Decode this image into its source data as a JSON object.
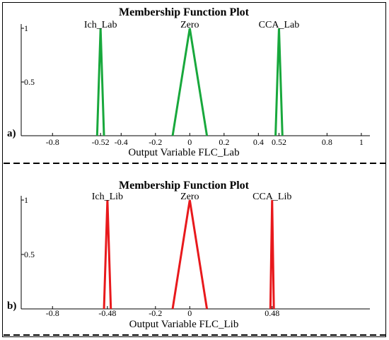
{
  "chart_data": [
    {
      "type": "line",
      "panel_label": "a)",
      "title": "Membership Function Plot",
      "xlabel": "Output Variable FLC_Lab",
      "xlim": [
        -0.9,
        1.05
      ],
      "ylim": [
        0,
        1
      ],
      "x_tick_labels": [
        "-0.8",
        "-0.52",
        "-0.4",
        "-0.2",
        "0",
        "0.2",
        "0.4",
        "0.52",
        "0.8",
        "1"
      ],
      "x_tick_values": [
        -0.8,
        -0.52,
        -0.4,
        -0.2,
        0,
        0.2,
        0.4,
        0.52,
        0.8,
        1
      ],
      "y_tick_labels": [
        "0.5",
        "1"
      ],
      "y_tick_values": [
        0.5,
        1
      ],
      "color": "#18a83c",
      "series": [
        {
          "name": "Ich_Lab",
          "x": [
            -0.54,
            -0.52,
            -0.5
          ],
          "y": [
            0,
            1,
            0
          ]
        },
        {
          "name": "Zero",
          "x": [
            -0.1,
            0,
            0.1
          ],
          "y": [
            0,
            1,
            0
          ]
        },
        {
          "name": "CCA_Lab",
          "x": [
            0.5,
            0.52,
            0.54
          ],
          "y": [
            0,
            1,
            0
          ]
        }
      ]
    },
    {
      "type": "line",
      "panel_label": "b)",
      "title": "Membership Function Plot",
      "xlabel": "Output Variable FLC_Lib",
      "xlim": [
        -0.9,
        1.05
      ],
      "ylim": [
        0,
        1
      ],
      "x_tick_labels": [
        "-0.8",
        "-0.48",
        "-0.2",
        "0",
        "0.48"
      ],
      "x_tick_values": [
        -0.8,
        -0.48,
        -0.2,
        0,
        0.48
      ],
      "y_tick_labels": [
        "0.5",
        "1"
      ],
      "y_tick_values": [
        0.5,
        1
      ],
      "color": "#e8191c",
      "series": [
        {
          "name": "Ich_Lib",
          "x": [
            -0.5,
            -0.48,
            -0.46
          ],
          "y": [
            0,
            1,
            0
          ]
        },
        {
          "name": "Zero",
          "x": [
            -0.1,
            0,
            0.1
          ],
          "y": [
            0,
            1,
            0
          ]
        },
        {
          "name": "CCA_Lib",
          "x": [
            0.47,
            0.48,
            0.49
          ],
          "y": [
            0,
            1,
            0
          ]
        }
      ]
    }
  ]
}
